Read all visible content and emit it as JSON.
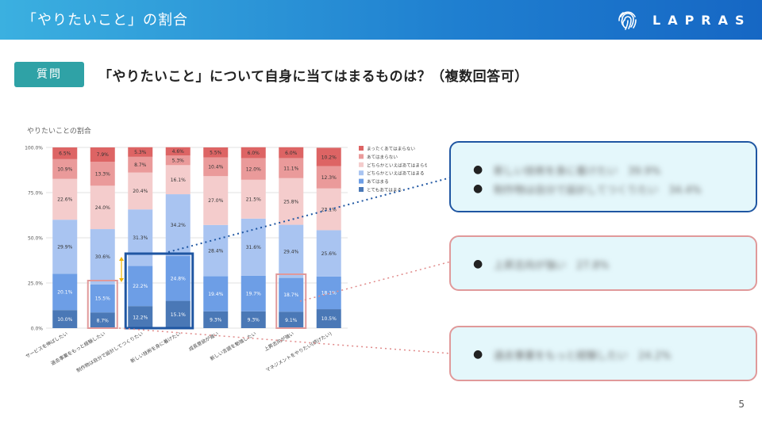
{
  "header": {
    "title": "「やりたいこと」の割合",
    "brand": "LAPRAS"
  },
  "question": {
    "badge": "質問",
    "text": "「やりたいこと」について自身に当てはまるものは？（複数回答可）"
  },
  "chart_data": {
    "type": "bar",
    "stacked": true,
    "title": "やりたいことの割合",
    "xlabel": "",
    "ylabel": "",
    "ylim": [
      0,
      100
    ],
    "y_ticks": [
      "0.0%",
      "25.0%",
      "50.0%",
      "75.0%",
      "100.0%"
    ],
    "grid": true,
    "legend_position": "right",
    "categories": [
      "サービスを伸ばしたい",
      "過去事業をもっと経験したい",
      "制作物は自分で設計してつくりたい",
      "新しい技術を身に着けたい",
      "成長意欲が強い",
      "新しい言語を勉強したい",
      "上昇志向が強い",
      "マネジメントをやりたい(続けたい)"
    ],
    "series": [
      {
        "name": "とてもあてはまる",
        "color": "#4a78b6",
        "values": [
          10.0,
          8.7,
          12.2,
          15.1,
          9.3,
          9.3,
          9.1,
          10.5
        ],
        "labels": [
          "10.0%",
          "8.7%",
          "12.2%",
          "15.1%",
          "9.3%",
          "9.3%",
          "9.1%",
          "10.5%"
        ]
      },
      {
        "name": "あてはまる",
        "color": "#6d9ee6",
        "values": [
          20.1,
          15.5,
          22.2,
          24.8,
          19.4,
          19.7,
          18.7,
          18.1
        ],
        "labels": [
          "20.1%",
          "15.5%",
          "22.2%",
          "24.8%",
          "19.4%",
          "19.7%",
          "18.7%",
          "18.1%"
        ]
      },
      {
        "name": "どちらかといえばあてはまる",
        "color": "#a9c4f1",
        "values": [
          29.9,
          30.6,
          31.3,
          34.2,
          28.4,
          31.6,
          29.4,
          25.6
        ],
        "labels": [
          "29.9%",
          "30.6%",
          "31.3%",
          "34.2%",
          "28.4%",
          "31.6%",
          "29.4%",
          "25.6%"
        ]
      },
      {
        "name": "どちらかといえばあてはまらない",
        "color": "#f4cccc",
        "values": [
          22.6,
          24.0,
          20.4,
          16.1,
          27.0,
          21.5,
          25.8,
          23.1
        ],
        "labels": [
          "22.6%",
          "24.0%",
          "20.4%",
          "16.1%",
          "27.0%",
          "21.5%",
          "25.8%",
          "23.1%"
        ]
      },
      {
        "name": "あてはまらない",
        "color": "#ea9a9a",
        "values": [
          10.9,
          13.3,
          8.7,
          5.3,
          10.4,
          12.0,
          11.1,
          12.3
        ],
        "labels": [
          "10.9%",
          "13.3%",
          "8.7%",
          "5.3%",
          "10.4%",
          "12.0%",
          "11.1%",
          "12.3%"
        ]
      },
      {
        "name": "まったくあてはまらない",
        "color": "#dd6464",
        "values": [
          6.5,
          7.9,
          5.3,
          4.6,
          5.5,
          6.0,
          6.0,
          10.2
        ],
        "labels": [
          "6.5%",
          "7.9%",
          "5.3%",
          "4.6%",
          "5.5%",
          "6.0%",
          "6.0%",
          "10.2%"
        ]
      }
    ]
  },
  "callouts": [
    {
      "bullets": [
        "新しい技術を身に着けたい　39.9%",
        "制作物は自分で設計してつくりたい　34.4%"
      ]
    },
    {
      "bullets": [
        "上昇志向が強い　27.8%"
      ]
    },
    {
      "bullets": [
        "過去事業をもっと経験したい　24.2%"
      ]
    }
  ],
  "page_number": "5"
}
